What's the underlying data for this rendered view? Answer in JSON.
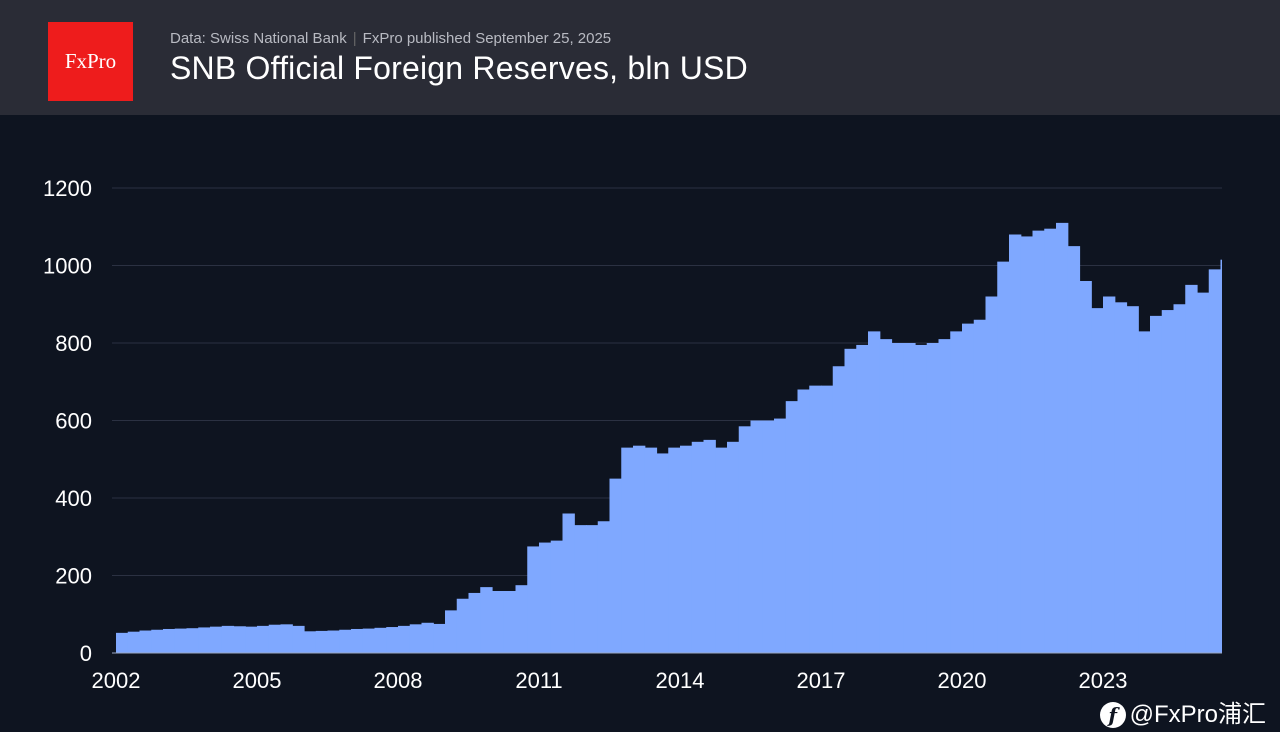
{
  "header": {
    "logo_text": "FxPro",
    "source": "Data: Swiss National Bank",
    "published": "FxPro published September 25, 2025",
    "title": "SNB Official Foreign Reserves, bln USD"
  },
  "watermark": {
    "icon": "social-logo-icon",
    "text": "@FxPro浦汇"
  },
  "chart_data": {
    "type": "area",
    "title": "SNB Official Foreign Reserves, bln USD",
    "xlabel": "",
    "ylabel": "",
    "ylim": [
      0,
      1200
    ],
    "yticks": [
      "0",
      "200",
      "400",
      "600",
      "800",
      "1000",
      "1200"
    ],
    "xticks": [
      "2002",
      "2005",
      "2008",
      "2011",
      "2014",
      "2017",
      "2020",
      "2023"
    ],
    "grid": true,
    "color": "#7fa8ff",
    "frequency": "quarterly",
    "start": "2002-Q1",
    "values": [
      52,
      55,
      58,
      60,
      62,
      63,
      64,
      66,
      68,
      70,
      69,
      68,
      70,
      73,
      74,
      70,
      56,
      57,
      58,
      60,
      62,
      63,
      65,
      67,
      70,
      74,
      78,
      75,
      110,
      140,
      155,
      170,
      160,
      160,
      175,
      275,
      285,
      290,
      360,
      330,
      330,
      340,
      450,
      530,
      535,
      530,
      515,
      530,
      535,
      545,
      550,
      530,
      545,
      585,
      600,
      600,
      605,
      650,
      680,
      690,
      690,
      740,
      785,
      795,
      830,
      810,
      800,
      800,
      795,
      800,
      810,
      830,
      850,
      860,
      920,
      1010,
      1080,
      1075,
      1090,
      1095,
      1110,
      1050,
      960,
      890,
      920,
      905,
      895,
      830,
      870,
      885,
      900,
      950,
      930,
      990,
      1015
    ]
  }
}
